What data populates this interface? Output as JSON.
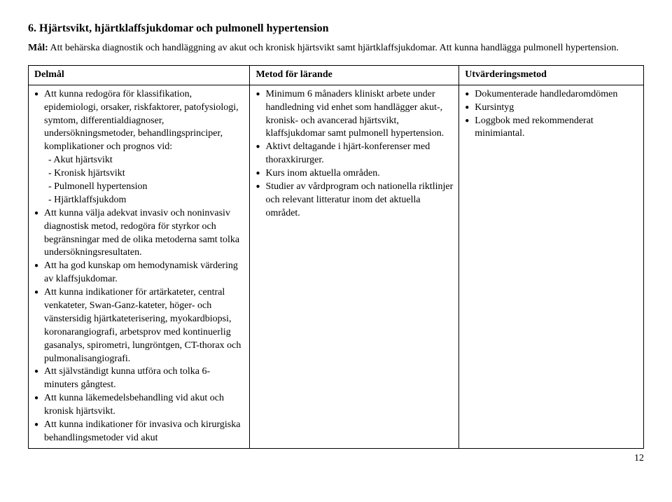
{
  "heading": "6. Hjärtsvikt, hjärtklaffsjukdomar och pulmonell hypertension",
  "goal": {
    "label": "Mål:",
    "text": " Att behärska diagnostik och handläggning av akut och kronisk hjärtsvikt samt hjärtklaffsjukdomar. Att kunna handlägga pulmonell hypertension."
  },
  "table": {
    "headers": [
      "Delmål",
      "Metod för lärande",
      "Utvärderingsmetod"
    ],
    "col1": {
      "item1_lead": "Att kunna redogöra för klassifikation, epidemiologi, orsaker, riskfaktorer, patofysiologi, symtom, differential­diagnoser, undersökningsmetoder, behandlingsprinciper, komplikationer och prognos vid:",
      "item1_sub": [
        "- Akut hjärtsvikt",
        "- Kronisk hjärtsvikt",
        "- Pulmonell hypertension",
        "- Hjärtklaffsjukdom"
      ],
      "item2": "Att kunna välja adekvat invasiv och noninvasiv diagnostisk metod, redogöra för styrkor och begränsningar med de olika metoderna samt tolka undersökningsresultaten.",
      "item3": "Att ha god kunskap om hemodynamisk värdering av klaffsjukdomar.",
      "item4": "Att kunna indikationer för artärkateter, central venkateter, Swan-Ganz-kateter, höger- och vänstersidig hjärtkateterisering, myokardbiopsi, koronarangiografi, arbetsprov med kontinuerlig gasanalys, spirometri, lungröntgen, CT-thorax och pulmonalisangiografi.",
      "item5": "Att självständigt kunna utföra och tolka 6-minuters gångtest.",
      "item6": "Att kunna läkemedelsbehandling vid akut och kronisk hjärtsvikt.",
      "item7": "Att kunna indikationer för invasiva och kirurgiska behandlingsmetoder vid akut"
    },
    "col2": {
      "item1": "Minimum 6 månaders kliniskt arbete under handledning vid enhet som handlägger akut-, kronisk- och avancerad hjärtsvikt, klaffsjukdomar samt pulmonell hypertension.",
      "item2": "Aktivt deltagande i hjärt-konferenser med thoraxkirurger.",
      "item3": "Kurs inom aktuella områden.",
      "item4": "Studier av vårdprogram och nationella riktlinjer och relevant litteratur inom det aktuella området."
    },
    "col3": {
      "item1": "Dokumenterade handledaromdömen",
      "item2": "Kursintyg",
      "item3": "Loggbok med rekommenderat minimiantal."
    }
  },
  "page_number": "12"
}
